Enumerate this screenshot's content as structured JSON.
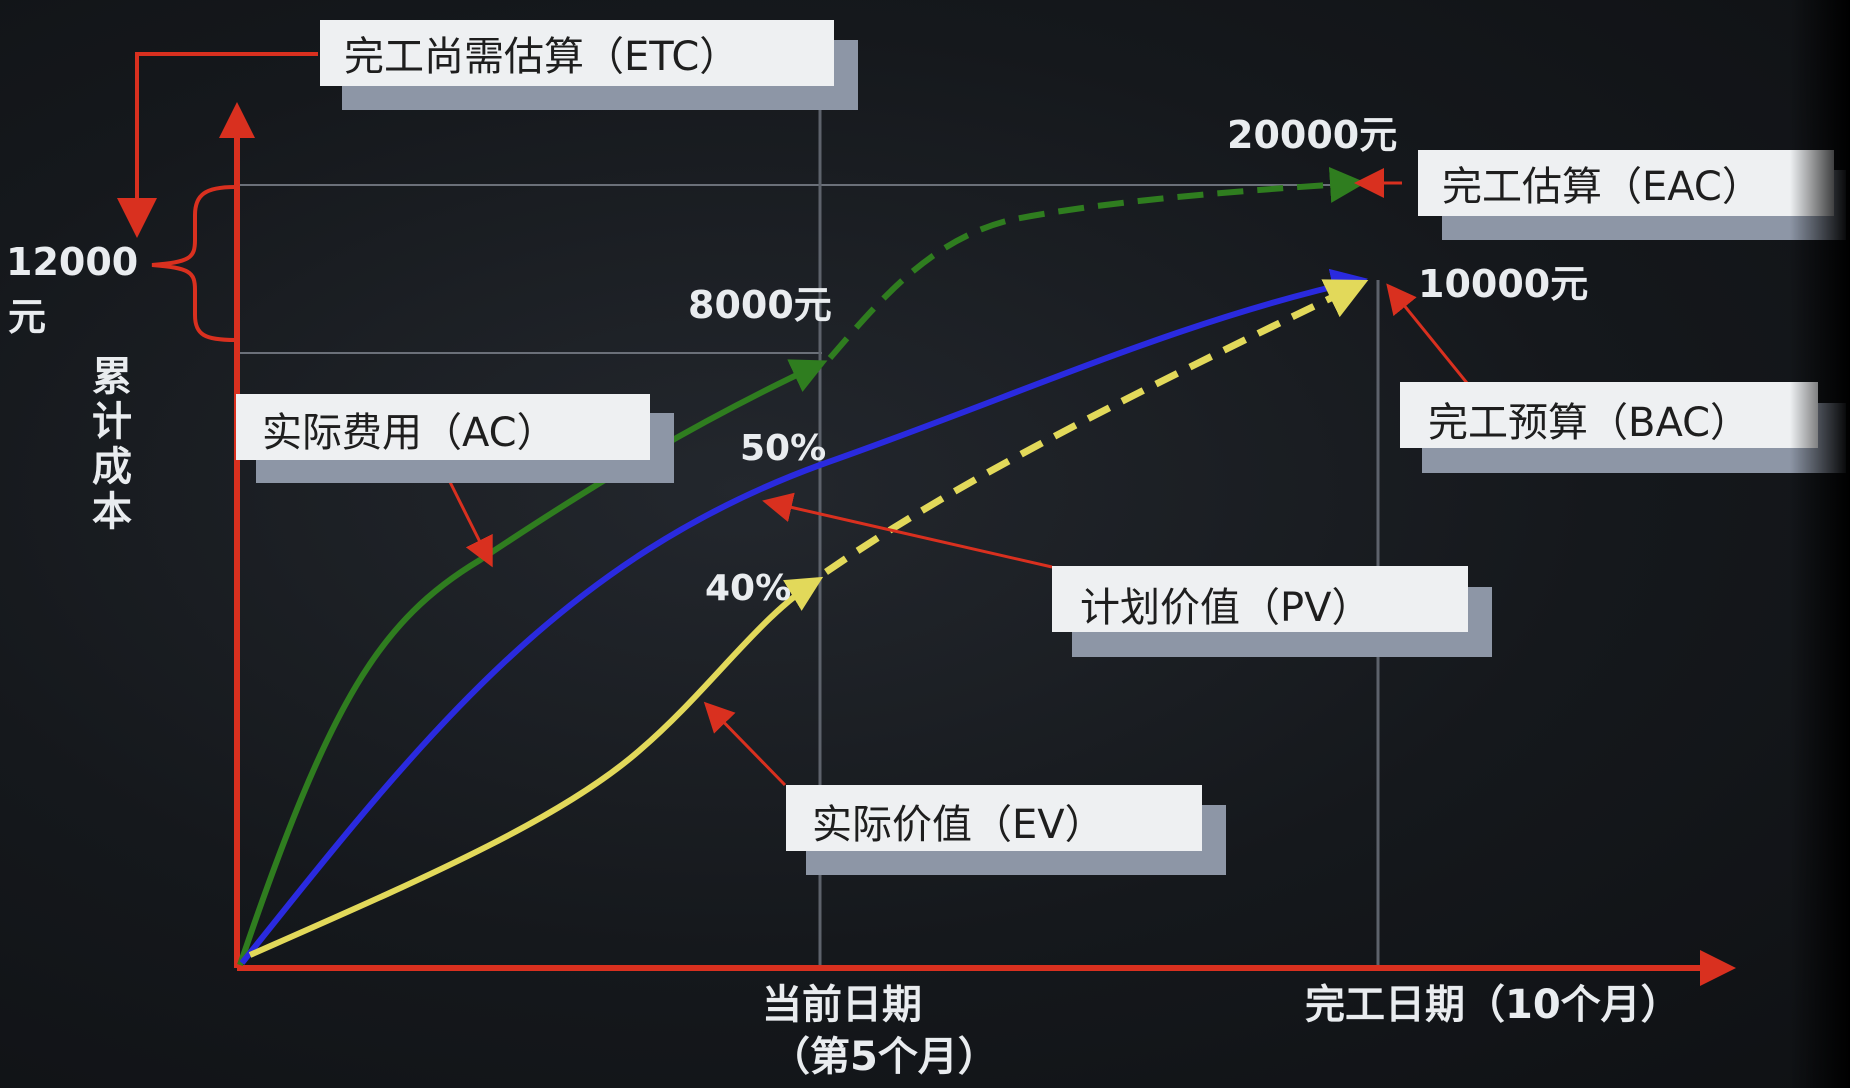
{
  "y_axis": {
    "label_chars": [
      "累",
      "计",
      "成",
      "本"
    ]
  },
  "x_axis": {
    "current_date": "当前日期",
    "current_month": "（第5个月）",
    "completion_date": "完工日期（10个月）"
  },
  "labels": {
    "etc_box": "完工尚需估算（ETC）",
    "eac_box": "完工估算（EAC）",
    "bac_box": "完工预算（BAC）",
    "ac_box": "实际费用（AC）",
    "pv_box": "计划价值（PV）",
    "ev_box": "实际价值（EV）"
  },
  "values": {
    "eac_value": "20000元",
    "ac_value": "8000元",
    "bac_value": "10000元",
    "etc_value_line1": "12000",
    "etc_value_line2": "元",
    "pv_percent": "50%",
    "ev_percent": "40%"
  },
  "colors": {
    "axis": "#d9301f",
    "ac_curve": "#2f7d1f",
    "pv_curve": "#2a2adf",
    "ev_curve": "#e2d95a",
    "box_fill": "#eef0f2",
    "box_shadow": "#8d96a6"
  }
}
